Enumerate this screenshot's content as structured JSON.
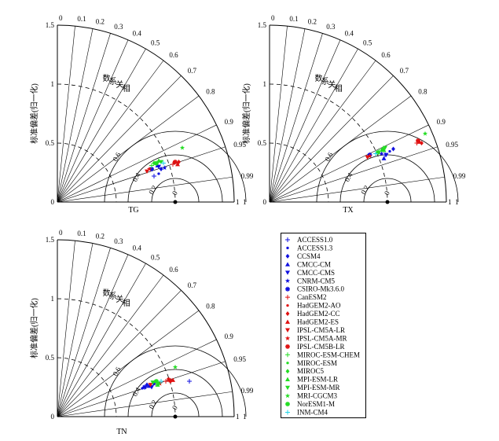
{
  "chart_data": [
    {
      "type": "taylor",
      "panel_label": "TG",
      "ylabel": "标准偏差(归一化)",
      "radial_ticks": [
        "0",
        "0.5",
        "1",
        "1.5"
      ],
      "corr_label_chars": [
        "相",
        "关",
        "系",
        "数"
      ],
      "corr_ticks": [
        {
          "value": 0.0,
          "label": "0"
        },
        {
          "value": 0.1,
          "label": "0.1"
        },
        {
          "value": 0.2,
          "label": "0.2"
        },
        {
          "value": 0.3,
          "label": "0.3"
        },
        {
          "value": 0.4,
          "label": "0.4"
        },
        {
          "value": 0.5,
          "label": "0.5"
        },
        {
          "value": 0.6,
          "label": "0.6"
        },
        {
          "value": 0.7,
          "label": "0.7"
        },
        {
          "value": 0.8,
          "label": "0.8"
        },
        {
          "value": 0.9,
          "label": "0.9"
        },
        {
          "value": 0.95,
          "label": "0.95"
        },
        {
          "value": 0.99,
          "label": "0.99"
        },
        {
          "value": 1.0,
          "label": "1"
        }
      ],
      "rmsd_labels": [
        {
          "value": 0.2,
          "label": "0.2"
        },
        {
          "value": 0.4,
          "label": "0.4"
        },
        {
          "value": 0.6,
          "label": "0.6"
        }
      ],
      "rmsd_zero_label": "0",
      "ref_std": 1.0,
      "std_circles": [
        0.5,
        1.0
      ],
      "rmsd_rings": [
        0.2,
        0.4,
        0.6
      ],
      "points": [
        {
          "model": "ACCESS1.0",
          "x": 0.82,
          "y": 0.22
        },
        {
          "model": "ACCESS1.3",
          "x": 0.86,
          "y": 0.24
        },
        {
          "model": "CCSM4",
          "x": 0.88,
          "y": 0.28
        },
        {
          "model": "CMCC-CM",
          "x": 0.85,
          "y": 0.31
        },
        {
          "model": "CMCC-CMS",
          "x": 0.86,
          "y": 0.3
        },
        {
          "model": "CNRM-CM5",
          "x": 0.91,
          "y": 0.29
        },
        {
          "model": "CSIRO-Mk3.6.0",
          "x": 0.8,
          "y": 0.28
        },
        {
          "model": "CanESM2",
          "x": 0.98,
          "y": 0.32
        },
        {
          "model": "HadGEM2-AO",
          "x": 0.99,
          "y": 0.34
        },
        {
          "model": "HadGEM2-CC",
          "x": 1.03,
          "y": 0.34
        },
        {
          "model": "HadGEM2-ES",
          "x": 1.02,
          "y": 0.32
        },
        {
          "model": "IPSL-CM5A-LR",
          "x": 0.76,
          "y": 0.26
        },
        {
          "model": "IPSL-CM5A-MR",
          "x": 0.78,
          "y": 0.28
        },
        {
          "model": "IPSL-CM5B-LR",
          "x": 1.0,
          "y": 0.34
        },
        {
          "model": "MIROC-ESM-CHEM",
          "x": 0.8,
          "y": 0.31
        },
        {
          "model": "MIROC-ESM",
          "x": 0.84,
          "y": 0.32
        },
        {
          "model": "MIROC5",
          "x": 0.82,
          "y": 0.33
        },
        {
          "model": "MPI-ESM-LR",
          "x": 0.86,
          "y": 0.35
        },
        {
          "model": "MPI-ESM-MR",
          "x": 0.88,
          "y": 0.34
        },
        {
          "model": "MRI-CGCM3",
          "x": 1.06,
          "y": 0.46
        },
        {
          "model": "NorESM1-M",
          "x": 0.84,
          "y": 0.33
        },
        {
          "model": "INM-CM4",
          "x": 0.9,
          "y": 0.33
        }
      ]
    },
    {
      "type": "taylor",
      "panel_label": "TX",
      "ylabel": "标准偏差(归一化)",
      "radial_ticks": [
        "0",
        "0.5",
        "1",
        "1.5"
      ],
      "corr_label_chars": [
        "相",
        "关",
        "系",
        "数"
      ],
      "corr_ticks": [
        {
          "value": 0.0,
          "label": "0"
        },
        {
          "value": 0.1,
          "label": "0.1"
        },
        {
          "value": 0.2,
          "label": "0.2"
        },
        {
          "value": 0.3,
          "label": "0.3"
        },
        {
          "value": 0.4,
          "label": "0.4"
        },
        {
          "value": 0.5,
          "label": "0.5"
        },
        {
          "value": 0.6,
          "label": "0.6"
        },
        {
          "value": 0.7,
          "label": "0.7"
        },
        {
          "value": 0.8,
          "label": "0.8"
        },
        {
          "value": 0.9,
          "label": "0.9"
        },
        {
          "value": 0.95,
          "label": "0.95"
        },
        {
          "value": 0.99,
          "label": "0.99"
        },
        {
          "value": 1.0,
          "label": "1"
        }
      ],
      "rmsd_labels": [
        {
          "value": 0.2,
          "label": "0.2"
        },
        {
          "value": 0.4,
          "label": "0.4"
        },
        {
          "value": 0.6,
          "label": "0.6"
        }
      ],
      "rmsd_zero_label": "0",
      "ref_std": 1.0,
      "std_circles": [
        0.5,
        1.0
      ],
      "rmsd_rings": [
        0.2,
        0.4,
        0.6
      ],
      "points": [
        {
          "model": "ACCESS1.0",
          "x": 0.98,
          "y": 0.4
        },
        {
          "model": "ACCESS1.3",
          "x": 1.02,
          "y": 0.43
        },
        {
          "model": "CCSM4",
          "x": 1.05,
          "y": 0.45
        },
        {
          "model": "CMCC-CM",
          "x": 0.97,
          "y": 0.37
        },
        {
          "model": "CMCC-CMS",
          "x": 0.99,
          "y": 0.4
        },
        {
          "model": "CNRM-CM5",
          "x": 0.95,
          "y": 0.41
        },
        {
          "model": "CSIRO-Mk3.6.0",
          "x": 0.85,
          "y": 0.4
        },
        {
          "model": "CanESM2",
          "x": 1.25,
          "y": 0.5
        },
        {
          "model": "HadGEM2-AO",
          "x": 1.26,
          "y": 0.52
        },
        {
          "model": "HadGEM2-CC",
          "x": 1.29,
          "y": 0.5
        },
        {
          "model": "HadGEM2-ES",
          "x": 1.27,
          "y": 0.51
        },
        {
          "model": "IPSL-CM5A-LR",
          "x": 0.83,
          "y": 0.38
        },
        {
          "model": "IPSL-CM5A-MR",
          "x": 0.85,
          "y": 0.39
        },
        {
          "model": "IPSL-CM5B-LR",
          "x": 1.26,
          "y": 0.52
        },
        {
          "model": "MIROC-ESM-CHEM",
          "x": 0.93,
          "y": 0.43
        },
        {
          "model": "MIROC-ESM",
          "x": 0.95,
          "y": 0.44
        },
        {
          "model": "MIROC5",
          "x": 0.96,
          "y": 0.45
        },
        {
          "model": "MPI-ESM-LR",
          "x": 0.97,
          "y": 0.44
        },
        {
          "model": "MPI-ESM-MR",
          "x": 0.98,
          "y": 0.46
        },
        {
          "model": "MRI-CGCM3",
          "x": 1.32,
          "y": 0.58
        },
        {
          "model": "NorESM1-M",
          "x": 0.92,
          "y": 0.42
        },
        {
          "model": "INM-CM4",
          "x": 0.9,
          "y": 0.41
        }
      ]
    },
    {
      "type": "taylor",
      "panel_label": "TN",
      "ylabel": "标准偏差(归一化)",
      "radial_ticks": [
        "0",
        "0.5",
        "1",
        "1.5"
      ],
      "corr_label_chars": [
        "相",
        "关",
        "系",
        "数"
      ],
      "corr_ticks": [
        {
          "value": 0.0,
          "label": "0"
        },
        {
          "value": 0.1,
          "label": "0.1"
        },
        {
          "value": 0.2,
          "label": "0.2"
        },
        {
          "value": 0.3,
          "label": "0.3"
        },
        {
          "value": 0.4,
          "label": "0.4"
        },
        {
          "value": 0.5,
          "label": "0.5"
        },
        {
          "value": 0.6,
          "label": "0.6"
        },
        {
          "value": 0.7,
          "label": "0.7"
        },
        {
          "value": 0.8,
          "label": "0.8"
        },
        {
          "value": 0.9,
          "label": "0.9"
        },
        {
          "value": 0.95,
          "label": "0.95"
        },
        {
          "value": 0.99,
          "label": "0.99"
        },
        {
          "value": 1.0,
          "label": "1"
        }
      ],
      "rmsd_labels": [
        {
          "value": 0.2,
          "label": "0.2"
        },
        {
          "value": 0.4,
          "label": "0.4"
        },
        {
          "value": 0.6,
          "label": "0.6"
        }
      ],
      "rmsd_zero_label": "0",
      "ref_std": 1.0,
      "std_circles": [
        0.5,
        1.0
      ],
      "rmsd_rings": [
        0.2,
        0.4,
        0.6
      ],
      "points": [
        {
          "model": "ACCESS1.0",
          "x": 1.12,
          "y": 0.3
        },
        {
          "model": "ACCESS1.3",
          "x": 0.72,
          "y": 0.24
        },
        {
          "model": "CCSM4",
          "x": 0.76,
          "y": 0.27
        },
        {
          "model": "CMCC-CM",
          "x": 0.78,
          "y": 0.26
        },
        {
          "model": "CMCC-CMS",
          "x": 0.8,
          "y": 0.25
        },
        {
          "model": "CNRM-CM5",
          "x": 0.82,
          "y": 0.28
        },
        {
          "model": "CSIRO-Mk3.6.0",
          "x": 0.74,
          "y": 0.25
        },
        {
          "model": "CanESM2",
          "x": 0.92,
          "y": 0.3
        },
        {
          "model": "HadGEM2-AO",
          "x": 0.94,
          "y": 0.32
        },
        {
          "model": "HadGEM2-CC",
          "x": 0.96,
          "y": 0.3
        },
        {
          "model": "HadGEM2-ES",
          "x": 0.98,
          "y": 0.31
        },
        {
          "model": "IPSL-CM5A-LR",
          "x": 0.79,
          "y": 0.27
        },
        {
          "model": "IPSL-CM5A-MR",
          "x": 0.87,
          "y": 0.28
        },
        {
          "model": "IPSL-CM5B-LR",
          "x": 0.95,
          "y": 0.31
        },
        {
          "model": "MIROC-ESM-CHEM",
          "x": 0.84,
          "y": 0.29
        },
        {
          "model": "MIROC-ESM",
          "x": 0.83,
          "y": 0.3
        },
        {
          "model": "MIROC5",
          "x": 0.86,
          "y": 0.28
        },
        {
          "model": "MPI-ESM-LR",
          "x": 0.85,
          "y": 0.27
        },
        {
          "model": "MPI-ESM-MR",
          "x": 0.81,
          "y": 0.29
        },
        {
          "model": "MRI-CGCM3",
          "x": 1.0,
          "y": 0.42
        },
        {
          "model": "NorESM1-M",
          "x": 0.84,
          "y": 0.3
        },
        {
          "model": "INM-CM4",
          "x": 0.88,
          "y": 0.3
        }
      ]
    }
  ],
  "legend": {
    "entries": [
      {
        "model": "ACCESS1.0",
        "label": "ACCESS1.0",
        "marker": "plus",
        "color": "#1010e0"
      },
      {
        "model": "ACCESS1.3",
        "label": "ACCESS1.3",
        "marker": "dot",
        "color": "#1010e0"
      },
      {
        "model": "CCSM4",
        "label": "CCSM4",
        "marker": "diamond",
        "color": "#1010e0"
      },
      {
        "model": "CMCC-CM",
        "label": "CMCC-CM",
        "marker": "triangle-up",
        "color": "#1010e0"
      },
      {
        "model": "CMCC-CMS",
        "label": "CMCC-CMS",
        "marker": "triangle-down",
        "color": "#1010e0"
      },
      {
        "model": "CNRM-CM5",
        "label": "CNRM-CM5",
        "marker": "star",
        "color": "#1010e0"
      },
      {
        "model": "CSIRO-Mk3.6.0",
        "label": "CSIRO-Mk3.6.0",
        "marker": "asterisk",
        "color": "#1010e0"
      },
      {
        "model": "CanESM2",
        "label": "CanESM2",
        "marker": "plus",
        "color": "#e01010"
      },
      {
        "model": "HadGEM2-AO",
        "label": "HadGEM2-AO",
        "marker": "dot",
        "color": "#e01010"
      },
      {
        "model": "HadGEM2-CC",
        "label": "HadGEM2-CC",
        "marker": "diamond",
        "color": "#e01010"
      },
      {
        "model": "HadGEM2-ES",
        "label": "HadGEM2-ES",
        "marker": "triangle-up",
        "color": "#e01010"
      },
      {
        "model": "IPSL-CM5A-LR",
        "label": "IPSL-CM5A-LR",
        "marker": "triangle-down",
        "color": "#e01010"
      },
      {
        "model": "IPSL-CM5A-MR",
        "label": "IPSL-CM5A-MR",
        "marker": "star",
        "color": "#e01010"
      },
      {
        "model": "IPSL-CM5B-LR",
        "label": "IPSL-CM5B-LR",
        "marker": "asterisk",
        "color": "#e01010"
      },
      {
        "model": "MIROC-ESM-CHEM",
        "label": "MIROC-ESM-CHEM",
        "marker": "plus",
        "color": "#22dd22"
      },
      {
        "model": "MIROC-ESM",
        "label": "MIROC-ESM",
        "marker": "dot",
        "color": "#22dd22"
      },
      {
        "model": "MIROC5",
        "label": "MIROC5",
        "marker": "diamond",
        "color": "#22dd22"
      },
      {
        "model": "MPI-ESM-LR",
        "label": "MPI-ESM-LR",
        "marker": "triangle-up",
        "color": "#22dd22"
      },
      {
        "model": "MPI-ESM-MR",
        "label": "MPI-ESM-MR",
        "marker": "triangle-down",
        "color": "#22dd22"
      },
      {
        "model": "MRI-CGCM3",
        "label": "MRI-CGCM3",
        "marker": "star",
        "color": "#22dd22"
      },
      {
        "model": "NorESM1-M",
        "label": "NorESM1-M",
        "marker": "asterisk",
        "color": "#22dd22"
      },
      {
        "model": "INM-CM4",
        "label": "INM-CM4",
        "marker": "plus",
        "color": "#22d4e8"
      }
    ]
  }
}
